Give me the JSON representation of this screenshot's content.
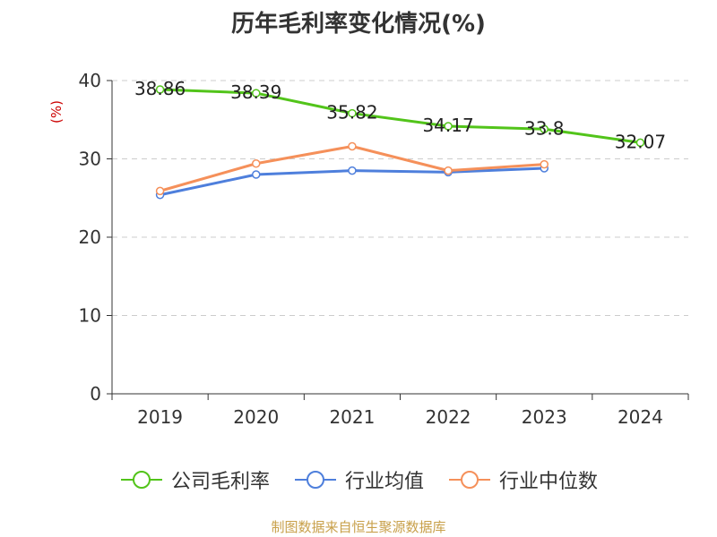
{
  "chart_data": {
    "type": "line",
    "title": "历年毛利率变化情况(%)",
    "ylabel": "(%)",
    "categories": [
      "2019",
      "2020",
      "2021",
      "2022",
      "2023",
      "2024"
    ],
    "ylim": [
      0,
      40
    ],
    "yticks": [
      "0",
      "10",
      "20",
      "30",
      "40"
    ],
    "grid": true,
    "legend_position": "bottom",
    "series": [
      {
        "name": "公司毛利率",
        "color": "#52c41a",
        "values": [
          38.86,
          38.39,
          35.82,
          34.17,
          33.8,
          32.07
        ],
        "labels": [
          "38.86",
          "38.39",
          "35.82",
          "34.17",
          "33.8",
          "32.07"
        ]
      },
      {
        "name": "行业均值",
        "color": "#4e7fdc",
        "values": [
          25.4,
          28.0,
          28.5,
          28.3,
          28.8,
          null
        ]
      },
      {
        "name": "行业中位数",
        "color": "#f5905a",
        "values": [
          25.9,
          29.4,
          31.6,
          28.5,
          29.3,
          null
        ]
      }
    ]
  },
  "source": "制图数据来自恒生聚源数据库"
}
